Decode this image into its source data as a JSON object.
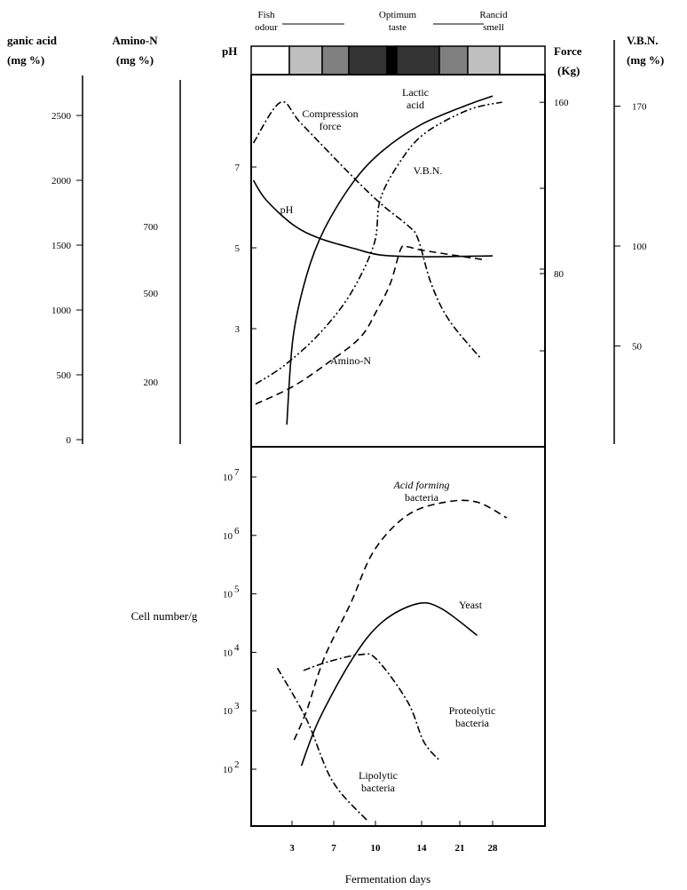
{
  "chart_data": [
    {
      "type": "line",
      "panel": "upper",
      "quality_scale": {
        "labels": [
          {
            "line1": "Fish",
            "line2": "odour"
          },
          {
            "line1": "Optimum",
            "line2": "taste"
          },
          {
            "line1": "Rancid",
            "line2": "smell"
          }
        ],
        "shading_levels": [
          0,
          0.25,
          0.5,
          0.8,
          1.0,
          0.8,
          0.5,
          0.25,
          0
        ]
      },
      "axes": {
        "organic_acid": {
          "title1": "ganic acid",
          "title2": "(mg %)",
          "ticks": [
            0,
            500,
            1000,
            1500,
            2000,
            2500
          ],
          "side": "left"
        },
        "amino_n": {
          "title1": "Amino-N",
          "title2": "(mg %)",
          "ticks": [
            200,
            500,
            700
          ],
          "side": "left"
        },
        "ph": {
          "title1": "pH",
          "ticks": [
            3,
            5,
            7
          ],
          "side": "left"
        },
        "force": {
          "title1": "Force",
          "title2": "(Kg)",
          "ticks": [
            80,
            160
          ],
          "side": "right"
        },
        "vbn": {
          "title1": "V.B.N.",
          "title2": "(mg %)",
          "ticks": [
            50,
            100,
            170
          ],
          "side": "right"
        }
      },
      "series": [
        {
          "name": "pH",
          "label": "pH",
          "axis": "ph",
          "style": "solid",
          "x": [
            -0.7,
            0.5,
            3.1,
            5.6,
            8.5,
            10.5,
            14.5,
            28
          ],
          "y": [
            6.67,
            6.19,
            5.57,
            5.24,
            4.98,
            4.82,
            4.78,
            4.8
          ]
        },
        {
          "name": "Lactic acid",
          "label": [
            "Lactic",
            "acid"
          ],
          "axis": "organic_acid",
          "style": "solid",
          "x": [
            2.5,
            3.1,
            4.4,
            6.1,
            8.4,
            10.6,
            14,
            22.7,
            28
          ],
          "y": [
            116,
            788,
            1267,
            1623,
            1986,
            2226,
            2432,
            2582,
            2650
          ]
        },
        {
          "name": "V.B.N.",
          "label": "V.B.N.",
          "axis": "vbn",
          "style": "dash-dot-dot",
          "x": [
            -0.5,
            2.2,
            5.6,
            8.2,
            9.9,
            10.4,
            12,
            14.4,
            22.7,
            30
          ],
          "y": [
            31,
            40,
            56,
            76,
            101,
            123,
            141,
            156,
            168,
            172
          ]
        },
        {
          "name": "Amino-N",
          "label": "Amino-N",
          "axis": "amino_n",
          "style": "dashed",
          "x": [
            -0.5,
            3.1,
            6.5,
            8.9,
            10.1,
            11.3,
            12.2,
            12.8,
            14.4,
            26.7
          ],
          "y": [
            125,
            185,
            266,
            350,
            440,
            530,
            633,
            639,
            628,
            599
          ]
        },
        {
          "name": "Compression force",
          "label": [
            "Compression",
            "force"
          ],
          "axis": "force",
          "style": "dash-dot",
          "x": [
            -0.7,
            1.9,
            3.9,
            8.4,
            10.6,
            12.9,
            13.7,
            15.8,
            19.1,
            25.6
          ],
          "y": [
            141,
            160,
            150,
            125,
            112,
            102,
            96,
            75,
            58,
            40
          ]
        }
      ]
    },
    {
      "type": "line",
      "panel": "lower",
      "ylabel": "Cell number/g",
      "xlabel": "Fermentation days",
      "yscale": "log",
      "ylim": [
        1,
        7.5
      ],
      "yticks": [
        {
          "exp": 7,
          "label": "10",
          "sup": "7"
        },
        {
          "exp": 6,
          "label": "10",
          "sup": "6"
        },
        {
          "exp": 5,
          "label": "10",
          "sup": "5"
        },
        {
          "exp": 4,
          "label": "10",
          "sup": "4"
        },
        {
          "exp": 3,
          "label": "10",
          "sup": "3"
        },
        {
          "exp": 2,
          "label": "10",
          "sup": "2"
        }
      ],
      "xticks": [
        3,
        7,
        10,
        14,
        21,
        28
      ],
      "series": [
        {
          "name": "Acid forming bacteria",
          "label": [
            "Acid forming",
            "bacteria"
          ],
          "style": "dashed",
          "x": [
            3.2,
            4.4,
            6.1,
            8.2,
            9.9,
            12.8,
            18.4,
            24.7,
            31
          ],
          "log10_y": [
            2.5,
            3.0,
            3.91,
            4.83,
            5.74,
            6.35,
            6.57,
            6.57,
            6.3
          ]
        },
        {
          "name": "Yeast",
          "label": [
            "Yeast"
          ],
          "style": "solid",
          "x": [
            3.9,
            5.6,
            8.4,
            10.6,
            13.6,
            17.6,
            24.7
          ],
          "log10_y": [
            2.06,
            2.85,
            3.91,
            4.52,
            4.83,
            4.75,
            4.29
          ]
        },
        {
          "name": "Proteolytic bacteria",
          "label": [
            "Proteolytic",
            "bacteria"
          ],
          "style": "dash-dot",
          "x": [
            4.1,
            6.5,
            8.9,
            10.1,
            12.8,
            14.4,
            17.4
          ],
          "log10_y": [
            3.69,
            3.84,
            3.96,
            3.88,
            3.15,
            2.47,
            2.14
          ]
        },
        {
          "name": "Lipolytic bacteria",
          "label": [
            "Lipolytic",
            "bacteria"
          ],
          "style": "dash-dot",
          "x": [
            1.6,
            4.4,
            6.9,
            9.5
          ],
          "log10_y": [
            3.73,
            2.85,
            1.79,
            1.1
          ]
        }
      ]
    }
  ]
}
